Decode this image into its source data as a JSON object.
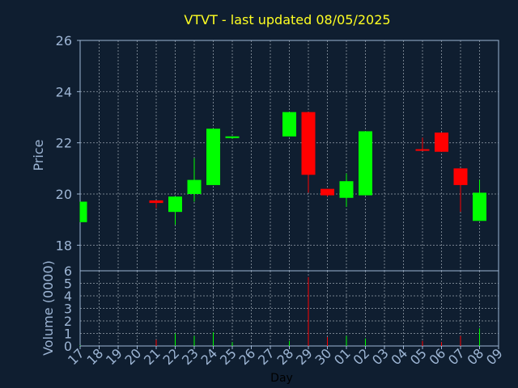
{
  "chart_data": {
    "type": "candlestick",
    "title": "VTVT - last updated 08/05/2025",
    "xlabel": "Day",
    "price_panel": {
      "ylabel": "Price",
      "ylim": [
        17,
        26
      ],
      "yticks": [
        "18",
        "20",
        "22",
        "24",
        "26"
      ]
    },
    "volume_panel": {
      "ylabel": "Volume (0000)",
      "ylim": [
        0,
        6
      ],
      "yticks": [
        "0",
        "1",
        "2",
        "3",
        "4",
        "5",
        "6"
      ]
    },
    "grid": true,
    "colors": {
      "up": "#00ff00",
      "down": "#ff0000",
      "background": "#0f1e30",
      "axes": "#9db5d4",
      "title": "#ffff22"
    },
    "categories": [
      "17",
      "18",
      "19",
      "20",
      "21",
      "22",
      "23",
      "24",
      "25",
      "26",
      "27",
      "28",
      "29",
      "30",
      "01",
      "02",
      "03",
      "04",
      "05",
      "06",
      "07",
      "08",
      "09"
    ],
    "candles": [
      {
        "day": "17",
        "open": 18.9,
        "high": 19.7,
        "low": 18.9,
        "close": 19.7
      },
      {
        "day": "21",
        "open": 19.75,
        "high": 19.75,
        "low": 19.45,
        "close": 19.65
      },
      {
        "day": "22",
        "open": 19.3,
        "high": 19.9,
        "low": 18.8,
        "close": 19.9
      },
      {
        "day": "23",
        "open": 20.0,
        "high": 21.4,
        "low": 19.7,
        "close": 20.55
      },
      {
        "day": "24",
        "open": 20.35,
        "high": 22.55,
        "low": 20.35,
        "close": 22.55
      },
      {
        "day": "25",
        "open": 22.2,
        "high": 22.25,
        "low": 22.15,
        "close": 22.25
      },
      {
        "day": "28",
        "open": 22.25,
        "high": 23.2,
        "low": 22.25,
        "close": 23.2
      },
      {
        "day": "29",
        "open": 23.2,
        "high": 23.2,
        "low": 20.05,
        "close": 20.75
      },
      {
        "day": "30",
        "open": 20.2,
        "high": 20.2,
        "low": 19.9,
        "close": 19.95
      },
      {
        "day": "01",
        "open": 19.85,
        "high": 20.8,
        "low": 19.5,
        "close": 20.5
      },
      {
        "day": "02",
        "open": 19.95,
        "high": 22.45,
        "low": 19.95,
        "close": 22.45
      },
      {
        "day": "05",
        "open": 21.75,
        "high": 22.2,
        "low": 21.7,
        "close": 21.7
      },
      {
        "day": "06",
        "open": 22.4,
        "high": 22.4,
        "low": 21.65,
        "close": 21.65
      },
      {
        "day": "07",
        "open": 21.0,
        "high": 21.0,
        "low": 19.3,
        "close": 20.35
      },
      {
        "day": "08",
        "open": 18.95,
        "high": 20.55,
        "low": 18.95,
        "close": 20.05
      }
    ],
    "volume": [
      {
        "day": "17",
        "value": 0.05,
        "dir": "up"
      },
      {
        "day": "21",
        "value": 0.5,
        "dir": "down"
      },
      {
        "day": "22",
        "value": 1.0,
        "dir": "up"
      },
      {
        "day": "23",
        "value": 0.8,
        "dir": "up"
      },
      {
        "day": "24",
        "value": 1.1,
        "dir": "up"
      },
      {
        "day": "25",
        "value": 0.3,
        "dir": "up"
      },
      {
        "day": "28",
        "value": 0.4,
        "dir": "up"
      },
      {
        "day": "29",
        "value": 5.5,
        "dir": "down"
      },
      {
        "day": "30",
        "value": 0.7,
        "dir": "down"
      },
      {
        "day": "01",
        "value": 0.8,
        "dir": "up"
      },
      {
        "day": "02",
        "value": 0.6,
        "dir": "up"
      },
      {
        "day": "05",
        "value": 0.4,
        "dir": "down"
      },
      {
        "day": "06",
        "value": 0.3,
        "dir": "down"
      },
      {
        "day": "07",
        "value": 0.8,
        "dir": "down"
      },
      {
        "day": "08",
        "value": 1.4,
        "dir": "up"
      }
    ]
  }
}
